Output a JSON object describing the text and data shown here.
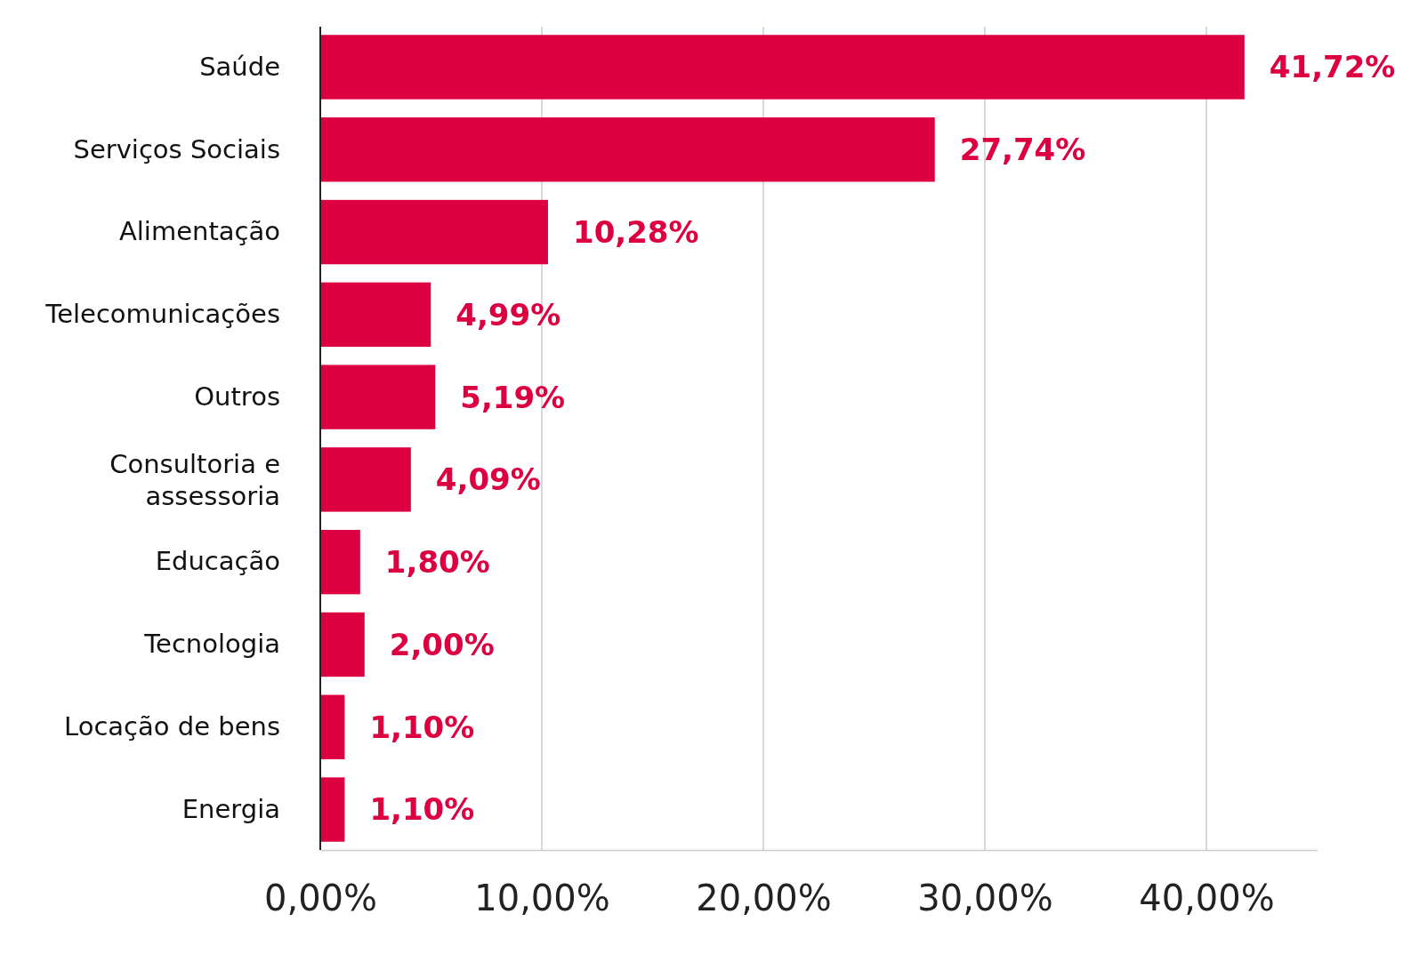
{
  "chart_data": {
    "type": "bar",
    "orientation": "horizontal",
    "categories": [
      "Saúde",
      "Serviços Sociais",
      "Alimentação",
      "Telecomunicações",
      "Outros",
      "Consultoria e assessoria",
      "Educação",
      "Tecnologia",
      "Locação de bens",
      "Energia"
    ],
    "values": [
      41.72,
      27.74,
      10.28,
      4.99,
      5.19,
      4.09,
      1.8,
      2.0,
      1.1,
      1.1
    ],
    "value_labels": [
      "41,72%",
      "27,74%",
      "10,28%",
      "4,99%",
      "5,19%",
      "4,09%",
      "1,80%",
      "2,00%",
      "1,10%",
      "1,10%"
    ],
    "color": "#dc0040",
    "xlim": [
      0,
      45
    ],
    "xticks": [
      {
        "value": 0,
        "label": "0,00%"
      },
      {
        "value": 10,
        "label": "10,00%"
      },
      {
        "value": 20,
        "label": "20,00%"
      },
      {
        "value": 30,
        "label": "30,00%"
      },
      {
        "value": 40,
        "label": "40,00%"
      }
    ],
    "grid": "x"
  }
}
